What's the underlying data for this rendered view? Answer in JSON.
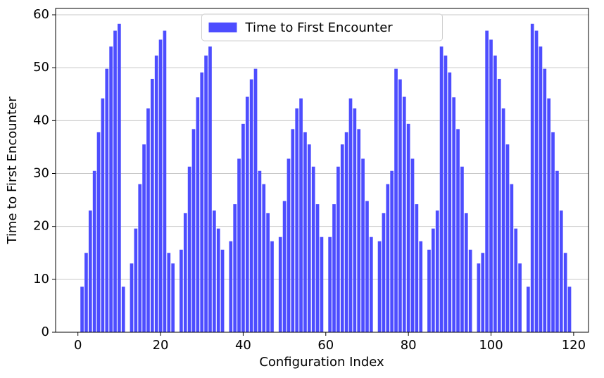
{
  "chart_data": {
    "type": "bar",
    "xlabel": "Configuration Index",
    "ylabel": "Time to First Encounter",
    "x": [
      1,
      2,
      3,
      4,
      5,
      6,
      7,
      8,
      9,
      10,
      11,
      13,
      14,
      15,
      16,
      17,
      18,
      19,
      20,
      21,
      22,
      23,
      25,
      26,
      27,
      28,
      29,
      30,
      31,
      32,
      33,
      34,
      35,
      37,
      38,
      39,
      40,
      41,
      42,
      43,
      44,
      45,
      46,
      47,
      49,
      50,
      51,
      52,
      53,
      54,
      55,
      56,
      57,
      58,
      59,
      61,
      62,
      63,
      64,
      65,
      66,
      67,
      68,
      69,
      70,
      71,
      73,
      74,
      75,
      76,
      77,
      78,
      79,
      80,
      81,
      82,
      83,
      85,
      86,
      87,
      88,
      89,
      90,
      91,
      92,
      93,
      94,
      95,
      97,
      98,
      99,
      100,
      101,
      102,
      103,
      104,
      105,
      106,
      107,
      109,
      110,
      111,
      112,
      113,
      114,
      115,
      116,
      117,
      118,
      119
    ],
    "series": [
      {
        "name": "Time to First Encounter",
        "color": "#4d4dff",
        "values": [
          8.6,
          15,
          23,
          30.5,
          37.8,
          44.2,
          49.8,
          54,
          57,
          58.3,
          8.6,
          13,
          19.6,
          28,
          35.5,
          42.3,
          47.9,
          52.3,
          55.3,
          57,
          15,
          13,
          15.6,
          22.5,
          31.3,
          38.4,
          44.4,
          49.1,
          52.3,
          54,
          23,
          19.6,
          15.6,
          17.2,
          24.2,
          32.8,
          39.4,
          44.5,
          47.8,
          49.8,
          30.5,
          28,
          22.5,
          17.2,
          18,
          24.8,
          32.8,
          38.4,
          42.3,
          44.2,
          37.8,
          35.5,
          31.3,
          24.2,
          18,
          18,
          24.2,
          31.3,
          35.5,
          37.8,
          44.2,
          42.3,
          38.4,
          32.8,
          24.8,
          18,
          17.2,
          22.5,
          28,
          30.5,
          49.8,
          47.8,
          44.5,
          39.4,
          32.8,
          24.2,
          17.2,
          15.6,
          19.6,
          23,
          54,
          52.3,
          49.1,
          44.4,
          38.4,
          31.3,
          22.5,
          15.6,
          13,
          15,
          57,
          55.3,
          52.3,
          47.9,
          42.3,
          35.5,
          28,
          19.6,
          13,
          8.6,
          58.3,
          57,
          54,
          49.8,
          44.2,
          37.8,
          30.5,
          23,
          15,
          8.6
        ]
      }
    ],
    "xlim": [
      -5.4,
      123.6
    ],
    "xticks": [
      0,
      20,
      40,
      60,
      80,
      100,
      120
    ],
    "ylim": [
      0,
      61.2
    ],
    "yticks": [
      0,
      10,
      20,
      30,
      40,
      50,
      60
    ],
    "grid": "y",
    "legend": "upper center"
  }
}
